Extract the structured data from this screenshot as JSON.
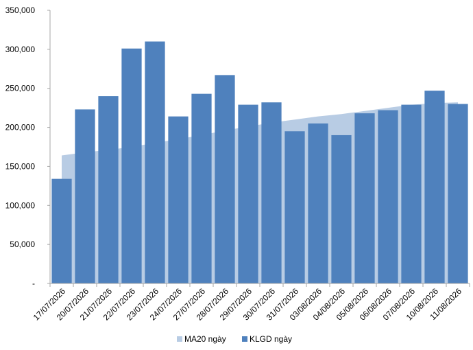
{
  "chart_data": {
    "type": "bar",
    "categories": [
      "17/07/2026",
      "20/07/2026",
      "21/07/2026",
      "22/07/2026",
      "23/07/2026",
      "24/07/2026",
      "27/07/2026",
      "28/07/2026",
      "29/07/2026",
      "30/07/2026",
      "31/07/2026",
      "03/08/2026",
      "04/08/2026",
      "05/08/2026",
      "06/08/2026",
      "07/08/2026",
      "10/08/2026",
      "11/08/2026"
    ],
    "series": [
      {
        "name": "MA20 ngày",
        "kind": "area",
        "color": "#b8cce4",
        "values": [
          164000,
          168000,
          171000,
          175000,
          180000,
          185000,
          190000,
          196000,
          201000,
          206000,
          210000,
          214000,
          217000,
          221000,
          225000,
          229000,
          231000,
          232000
        ]
      },
      {
        "name": "KLGD ngày",
        "kind": "bar",
        "color": "#4f81bd",
        "values": [
          134000,
          223000,
          240000,
          301000,
          310000,
          214000,
          243000,
          267000,
          229000,
          232000,
          195000,
          205000,
          190000,
          218000,
          222000,
          229000,
          247000,
          230000
        ]
      }
    ],
    "y_ticks": [
      "-",
      "50,000",
      "100,000",
      "150,000",
      "200,000",
      "250,000",
      "300,000",
      "350,000"
    ],
    "ylim": [
      0,
      350000
    ],
    "grid": false,
    "legend_position": "bottom"
  }
}
